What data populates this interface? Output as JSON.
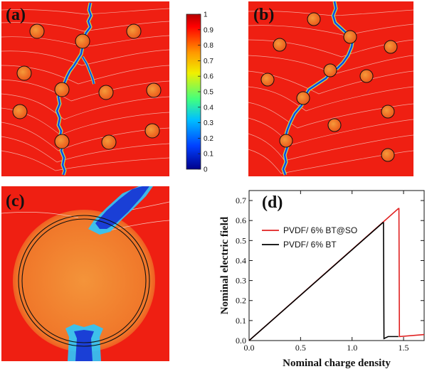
{
  "panels": {
    "a": {
      "label": "(a)"
    },
    "b": {
      "label": "(b)"
    },
    "c": {
      "label": "(c)"
    },
    "d": {
      "label": "(d)"
    }
  },
  "colorbar": {
    "ticks": [
      "1",
      "0.9",
      "0.8",
      "0.7",
      "0.6",
      "0.5",
      "0.4",
      "0.3",
      "0.2",
      "0.1",
      "0"
    ],
    "colors": [
      "#b50000",
      "#ff0000",
      "#ff9a00",
      "#f0f000",
      "#40ff80",
      "#00c0ff",
      "#0040ff",
      "#00008b"
    ]
  },
  "colors": {
    "field_red": "#ef1f12",
    "particle": "#f0641e",
    "crack_blue": "#1a4fd6",
    "red_series": "#e02020",
    "black_series": "#000000"
  },
  "chart_data": {
    "type": "line",
    "xlabel": "Nominal charge density",
    "ylabel": "Nominal electric field",
    "xlim": [
      0,
      1.7
    ],
    "ylim": [
      0,
      0.75
    ],
    "xticks": [
      "0.0",
      "0.5",
      "1.0",
      "1.5"
    ],
    "yticks": [
      "0.0",
      "0.1",
      "0.2",
      "0.3",
      "0.4",
      "0.5",
      "0.6",
      "0.7"
    ],
    "legend_position": "top-left",
    "series": [
      {
        "name": "PVDF/ 6% BT@SO",
        "color": "#e02020",
        "x": [
          0,
          1.45,
          1.455,
          1.46,
          1.7
        ],
        "y": [
          0,
          0.66,
          0.66,
          0.02,
          0.03
        ]
      },
      {
        "name": "PVDF/ 6% BT",
        "color": "#000000",
        "x": [
          0,
          1.3,
          1.305,
          1.31,
          1.35,
          1.45
        ],
        "y": [
          0,
          0.59,
          0.59,
          0.01,
          0.02,
          0.02
        ]
      }
    ]
  }
}
